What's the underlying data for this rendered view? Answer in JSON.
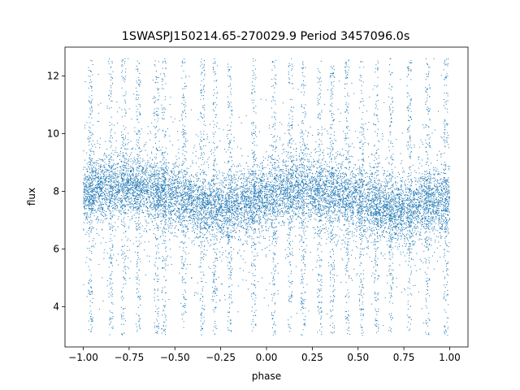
{
  "chart_data": {
    "type": "scatter",
    "title": "1SWASPJ150214.65-270029.9 Period 3457096.0s",
    "xlabel": "phase",
    "ylabel": "flux",
    "xlim": [
      -1.1,
      1.1
    ],
    "ylim": [
      2.6,
      13.0
    ],
    "x_ticks": [
      -1.0,
      -0.75,
      -0.5,
      -0.25,
      0.0,
      0.25,
      0.5,
      0.75,
      1.0
    ],
    "x_tick_labels": [
      "−1.00",
      "−0.75",
      "−0.50",
      "−0.25",
      "0.00",
      "0.25",
      "0.50",
      "0.75",
      "1.00"
    ],
    "y_ticks": [
      4,
      6,
      8,
      10,
      12
    ],
    "y_tick_labels": [
      "4",
      "6",
      "8",
      "10",
      "12"
    ],
    "grid": false,
    "marker_color": "#1f77b4",
    "series": [
      {
        "phase_range": [
          -1.0,
          1.0
        ],
        "flux_center": 7.9,
        "flux_core_spread": 0.55,
        "flux_min": 3.0,
        "flux_max": 12.6,
        "band_profile": [
          [
            -1.0,
            7.9
          ],
          [
            -0.875,
            8.1
          ],
          [
            -0.75,
            8.2
          ],
          [
            -0.6,
            8.0
          ],
          [
            -0.45,
            7.7
          ],
          [
            -0.3,
            7.4
          ],
          [
            -0.2,
            7.4
          ],
          [
            -0.05,
            7.7
          ],
          [
            0.1,
            8.0
          ],
          [
            0.25,
            8.1
          ],
          [
            0.4,
            7.9
          ],
          [
            0.55,
            7.6
          ],
          [
            0.7,
            7.3
          ],
          [
            0.8,
            7.4
          ],
          [
            0.9,
            7.6
          ],
          [
            1.0,
            7.7
          ]
        ],
        "spike_phases": [
          -0.96,
          -0.85,
          -0.78,
          -0.7,
          -0.6,
          -0.56,
          -0.45,
          -0.35,
          -0.28,
          -0.2,
          -0.07,
          0.04,
          0.13,
          0.2,
          0.29,
          0.36,
          0.44,
          0.52,
          0.6,
          0.68,
          0.78,
          0.88,
          0.98
        ]
      }
    ]
  }
}
